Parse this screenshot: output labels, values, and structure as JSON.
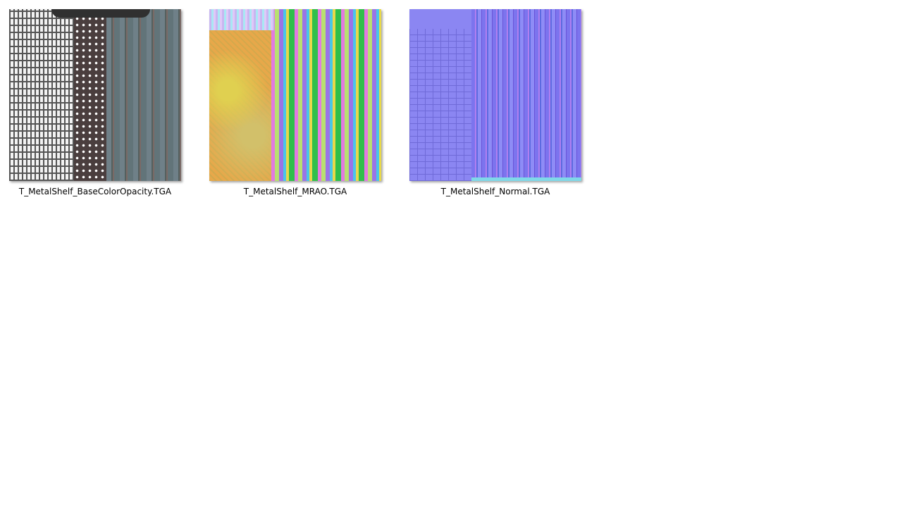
{
  "files": [
    {
      "name": "T_MetalShelf_BaseColorOpacity.TGA"
    },
    {
      "name": "T_MetalShelf_MRAO.TGA"
    },
    {
      "name": "T_MetalShelf_Normal.TGA"
    }
  ]
}
